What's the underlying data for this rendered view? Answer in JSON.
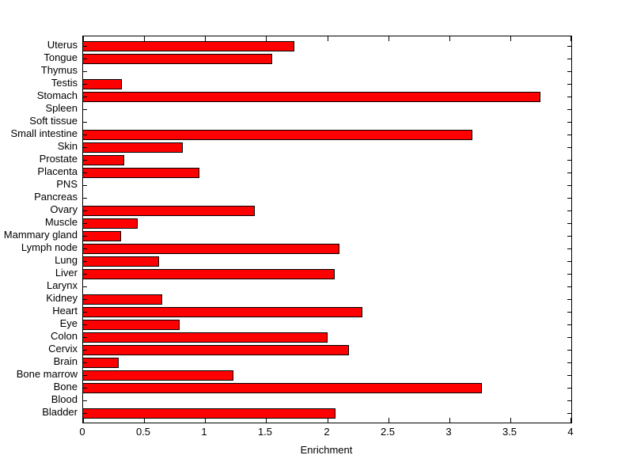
{
  "figure": {
    "background_color": "#FFFFFF",
    "axis_color": "#000000",
    "text_color": "#000000"
  },
  "chart_data": {
    "type": "bar",
    "orientation": "horizontal",
    "title": "",
    "xlabel": "Enrichment",
    "ylabel": "",
    "xlim": [
      0,
      4
    ],
    "xticks": [
      0,
      0.5,
      1,
      1.5,
      2,
      2.5,
      3,
      3.5,
      4
    ],
    "xtick_labels": [
      "0",
      "0.5",
      "1",
      "1.5",
      "2",
      "2.5",
      "3",
      "3.5",
      "4"
    ],
    "grid": false,
    "legend": null,
    "bar_fill_color": "#FF0000",
    "bar_edge_color": "#000000",
    "categories_top_to_bottom": [
      "Uterus",
      "Tongue",
      "Thymus",
      "Testis",
      "Stomach",
      "Spleen",
      "Soft tissue",
      "Small intestine",
      "Skin",
      "Prostate",
      "Placenta",
      "PNS",
      "Pancreas",
      "Ovary",
      "Muscle",
      "Mammary gland",
      "Lymph node",
      "Lung",
      "Liver",
      "Larynx",
      "Kidney",
      "Heart",
      "Eye",
      "Colon",
      "Cervix",
      "Brain",
      "Bone marrow",
      "Bone",
      "Blood",
      "Bladder"
    ],
    "values": [
      1.73,
      1.55,
      0,
      0.32,
      3.75,
      0,
      0,
      3.19,
      0.82,
      0.34,
      0.95,
      0,
      0,
      1.41,
      0.45,
      0.31,
      2.1,
      0.62,
      2.06,
      0,
      0.65,
      2.29,
      0.79,
      2.0,
      2.18,
      0.29,
      1.23,
      3.27,
      0,
      2.07
    ]
  }
}
